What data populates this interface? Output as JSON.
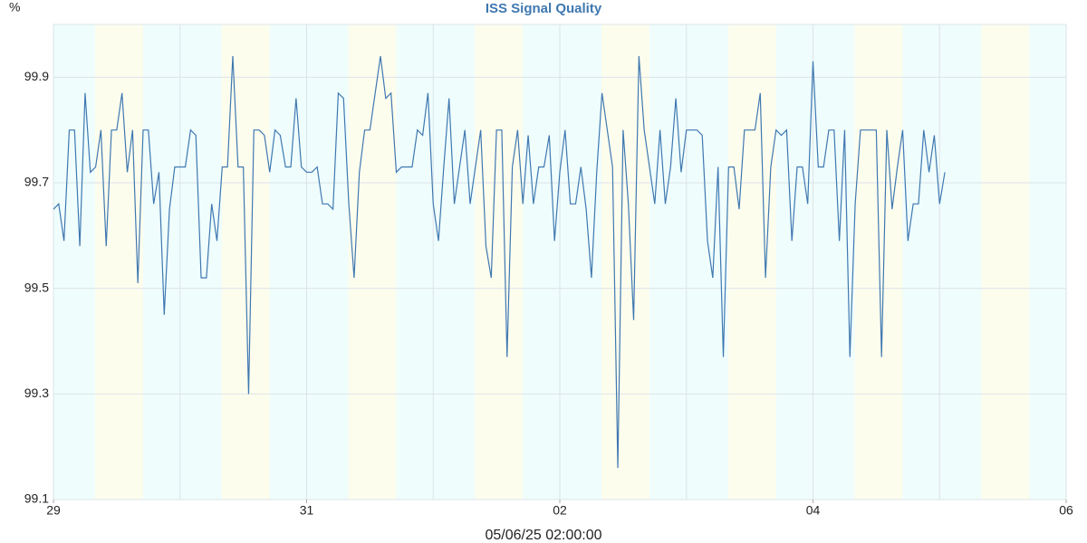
{
  "chart_data": {
    "type": "line",
    "title": "ISS Signal Quality",
    "y_label": "%",
    "x_label": "05/06/25 02:00:00",
    "x": [
      0,
      1,
      2,
      3,
      4,
      5,
      6,
      7,
      8,
      9,
      10,
      11,
      12,
      13,
      14,
      15,
      16,
      17,
      18,
      19,
      20,
      21,
      22,
      23,
      24,
      25,
      26,
      27,
      28,
      29,
      30,
      31,
      32,
      33,
      34,
      35,
      36,
      37,
      38,
      39,
      40,
      41,
      42,
      43,
      44,
      45,
      46,
      47,
      48,
      49,
      50,
      51,
      52,
      53,
      54,
      55,
      56,
      57,
      58,
      59,
      60,
      61,
      62,
      63,
      64,
      65,
      66,
      67,
      68,
      69,
      70,
      71,
      72,
      73,
      74,
      75,
      76,
      77,
      78,
      79,
      80,
      81,
      82,
      83,
      84,
      85,
      86,
      87,
      88,
      89,
      90,
      91,
      92,
      93,
      94,
      95,
      96,
      97,
      98,
      99,
      100,
      101,
      102,
      103,
      104,
      105,
      106,
      107,
      108,
      109,
      110,
      111,
      112,
      113,
      114,
      115,
      116,
      117,
      118,
      119,
      120,
      121,
      122,
      123,
      124,
      125,
      126,
      127,
      128,
      129,
      130,
      131,
      132,
      133,
      134,
      135,
      136,
      137,
      138,
      139,
      140,
      141,
      142,
      143,
      144,
      145,
      146,
      147,
      148,
      149,
      150,
      151,
      152,
      153,
      154,
      155,
      156,
      157,
      158,
      159,
      160,
      161,
      162,
      163,
      164,
      165,
      166,
      167,
      168,
      169
    ],
    "series": [
      {
        "name": "Signal Quality",
        "color": "#3f78b0",
        "values": [
          99.65,
          99.66,
          99.59,
          99.8,
          99.8,
          99.58,
          99.87,
          99.72,
          99.73,
          99.8,
          99.58,
          99.8,
          99.8,
          99.87,
          99.72,
          99.8,
          99.51,
          99.8,
          99.8,
          99.66,
          99.72,
          99.45,
          99.65,
          99.73,
          99.73,
          99.73,
          99.8,
          99.79,
          99.52,
          99.52,
          99.66,
          99.59,
          99.73,
          99.73,
          99.94,
          99.73,
          99.73,
          99.3,
          99.8,
          99.8,
          99.79,
          99.72,
          99.8,
          99.79,
          99.73,
          99.73,
          99.86,
          99.73,
          99.72,
          99.72,
          99.73,
          99.66,
          99.66,
          99.65,
          99.87,
          99.86,
          99.66,
          99.52,
          99.72,
          99.8,
          99.8,
          99.87,
          99.94,
          99.86,
          99.87,
          99.72,
          99.73,
          99.73,
          99.73,
          99.8,
          99.79,
          99.87,
          99.66,
          99.59,
          99.73,
          99.86,
          99.66,
          99.73,
          99.8,
          99.66,
          99.73,
          99.8,
          99.58,
          99.52,
          99.8,
          99.8,
          99.37,
          99.73,
          99.8,
          99.66,
          99.79,
          99.66,
          99.73,
          99.73,
          99.79,
          99.59,
          99.72,
          99.8,
          99.66,
          99.66,
          99.73,
          99.65,
          99.52,
          99.72,
          99.87,
          99.8,
          99.73,
          99.16,
          99.8,
          99.66,
          99.44,
          99.94,
          99.8,
          99.73,
          99.66,
          99.8,
          99.66,
          99.73,
          99.86,
          99.72,
          99.8,
          99.8,
          99.8,
          99.79,
          99.59,
          99.52,
          99.73,
          99.37,
          99.73,
          99.73,
          99.65,
          99.8,
          99.8,
          99.8,
          99.87,
          99.52,
          99.73,
          99.8,
          99.79,
          99.8,
          99.59,
          99.73,
          99.73,
          99.66,
          99.93,
          99.73,
          99.73,
          99.8,
          99.8,
          99.59,
          99.8,
          99.37,
          99.66,
          99.8,
          99.8,
          99.8,
          99.8,
          99.37,
          99.8,
          99.65,
          99.73,
          99.8,
          99.59,
          99.66,
          99.66,
          99.8,
          99.72,
          99.79,
          99.66,
          99.72
        ]
      }
    ],
    "xlim": [
      0,
      192
    ],
    "xticks": [
      {
        "value": 0,
        "label": "29"
      },
      {
        "value": 48,
        "label": "31"
      },
      {
        "value": 96,
        "label": "02"
      },
      {
        "value": 144,
        "label": "04"
      },
      {
        "value": 192,
        "label": "06"
      }
    ],
    "ylim": [
      99.1,
      100.0
    ],
    "yticks": [
      99.1,
      99.3,
      99.5,
      99.7,
      99.9
    ],
    "grid": true
  }
}
